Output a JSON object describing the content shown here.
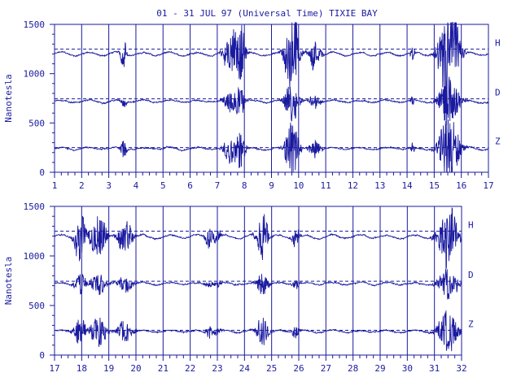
{
  "title": "01 - 31 JUL 97 (Universal Time) TIXIE BAY",
  "chart_data": [
    {
      "type": "line",
      "panel": "top",
      "xlim": [
        1,
        17
      ],
      "x_ticks": [
        "1",
        "2",
        "3",
        "4",
        "5",
        "6",
        "7",
        "8",
        "9",
        "10",
        "11",
        "12",
        "13",
        "14",
        "15",
        "16",
        "17"
      ],
      "ylim": [
        0,
        1500
      ],
      "y_ticks": [
        "0",
        "500",
        "1000",
        "1500"
      ],
      "ylabel": "Nanotesla",
      "grid": "vertical lines at each day",
      "series": [
        {
          "name": "H",
          "baseline": 1250,
          "level": 1200
        },
        {
          "name": "D",
          "baseline": 745,
          "level": 720
        },
        {
          "name": "Z",
          "baseline": 250,
          "level": 240
        }
      ]
    },
    {
      "type": "line",
      "panel": "bottom",
      "xlim": [
        17,
        32
      ],
      "x_ticks": [
        "17",
        "18",
        "19",
        "20",
        "21",
        "22",
        "23",
        "24",
        "25",
        "26",
        "27",
        "28",
        "29",
        "30",
        "31",
        "32"
      ],
      "ylim": [
        0,
        1500
      ],
      "y_ticks": [
        "0",
        "500",
        "1000",
        "1500"
      ],
      "ylabel": "Nanotesla",
      "grid": "vertical lines at each day",
      "series": [
        {
          "name": "H",
          "baseline": 1250,
          "level": 1195
        },
        {
          "name": "D",
          "baseline": 745,
          "level": 720
        },
        {
          "name": "Z",
          "baseline": 250,
          "level": 240
        }
      ]
    }
  ],
  "colors": {
    "trace": "#1a1aa0",
    "axis": "#1a1aa0",
    "background": "#ffffff"
  }
}
